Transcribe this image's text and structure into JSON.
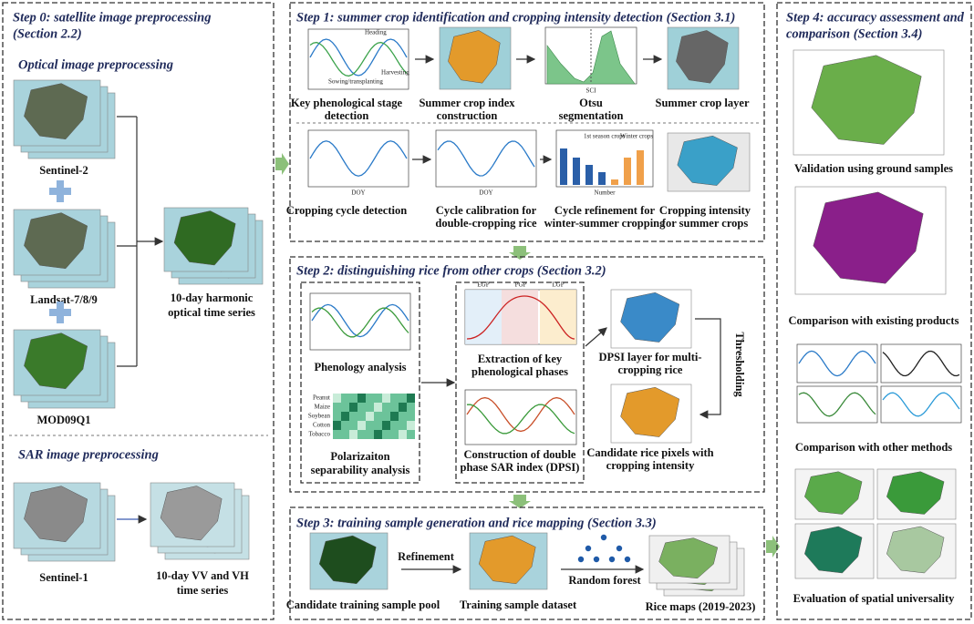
{
  "step0": {
    "title": [
      "Step 0: satellite image preprocessing",
      "(Section 2.2)"
    ],
    "optical_heading": "Optical image preprocessing",
    "sources": [
      "Sentinel-2",
      "Landsat-7/8/9",
      "MOD09Q1"
    ],
    "harmonic": [
      "10-day harmonic",
      "optical time series"
    ],
    "sar_heading": "SAR image preprocessing",
    "sar_source": "Sentinel-1",
    "sar_series": [
      "10-day VV and VH",
      "time series"
    ]
  },
  "step1": {
    "title": "Step 1: summer crop identification and cropping intensity detection (Section 3.1)",
    "row1": [
      [
        "Key phenological stage",
        "detection"
      ],
      [
        "Summer crop index",
        "construction"
      ],
      [
        "Otsu",
        "segmentation"
      ],
      [
        "Summer crop layer"
      ]
    ],
    "row2": [
      [
        "Cropping cycle detection"
      ],
      [
        "Cycle calibration for",
        "double-cropping rice"
      ],
      [
        "Cycle refinement for",
        "winter-summer cropping"
      ],
      [
        "Cropping intensity",
        "for summer crops"
      ]
    ],
    "chart_texts": {
      "heading": "Heading",
      "sowing": "Sowing/transplanting",
      "harvesting": "Harvesting",
      "sci": "SCI",
      "doy": "DOY",
      "number": "Number",
      "first_season": "1st season crops",
      "winter": "Winter crops"
    }
  },
  "step2": {
    "title": "Step 2: distinguishing rice from other crops (Section 3.2)",
    "phenology": "Phenology analysis",
    "polarization": [
      "Polarizaiton",
      "separability analysis"
    ],
    "crops": [
      "Peanut",
      "Maize",
      "Soybean",
      "Cotton",
      "Tobacco"
    ],
    "phases": [
      "EGP",
      "PGP",
      "LGP"
    ],
    "extraction": [
      "Extraction of key",
      "phenological phases"
    ],
    "construction": [
      "Construction of double",
      "phase SAR index (DPSI)"
    ],
    "dpsi_layer": [
      "DPSI layer for multi-",
      "cropping rice"
    ],
    "thresholding": "Thresholding",
    "candidate": [
      "Candidate rice pixels with",
      "cropping intensity"
    ]
  },
  "step3": {
    "title": "Step 3: training sample generation and rice mapping  (Section 3.3)",
    "pool": "Candidate training sample pool",
    "refinement": "Refinement",
    "dataset": "Training sample dataset",
    "rf": "Random forest",
    "maps": "Rice maps (2019-2023)"
  },
  "step4": {
    "title": [
      "Step 4: accuracy assessment and",
      "comparison (Section 3.4)"
    ],
    "items": [
      "Validation using ground samples",
      "Comparison with existing products",
      "Comparison with other methods",
      "Evaluation of spatial universality"
    ]
  }
}
